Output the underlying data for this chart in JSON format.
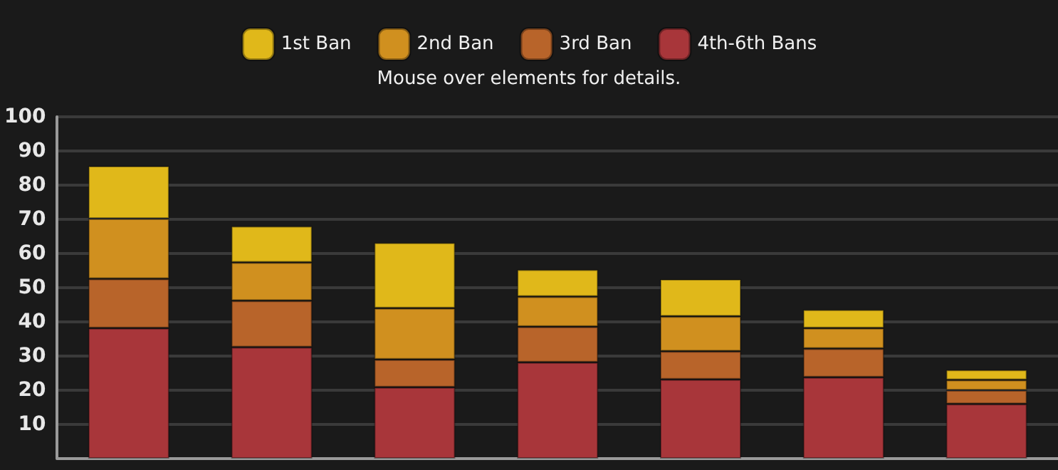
{
  "chart_data": {
    "type": "bar",
    "subtitle": "Mouse over elements for details.",
    "categories": [
      null,
      null,
      null,
      null,
      null,
      null,
      null
    ],
    "stacked": true,
    "series": [
      {
        "name": "4th-6th Bans",
        "color": "#a8363a",
        "values": [
          38.2,
          32.6,
          20.9,
          28.2,
          23.2,
          23.8,
          16
        ]
      },
      {
        "name": "3rd Ban",
        "color": "#b8642a",
        "values": [
          14.4,
          13.6,
          8.1,
          10.4,
          8.2,
          8.4,
          4
        ]
      },
      {
        "name": "2nd Ban",
        "color": "#d0901f",
        "values": [
          17.6,
          11.2,
          15,
          8.8,
          10.2,
          6,
          3
        ]
      },
      {
        "name": "1st Ban",
        "color": "#e0b81a",
        "values": [
          15.4,
          10.6,
          19.2,
          7.9,
          10.9,
          5.4,
          3
        ]
      }
    ],
    "ylim": [
      0,
      100
    ],
    "yticks": [
      10,
      20,
      30,
      40,
      50,
      60,
      70,
      80,
      90,
      100
    ],
    "grid": "y",
    "legend": "top"
  }
}
